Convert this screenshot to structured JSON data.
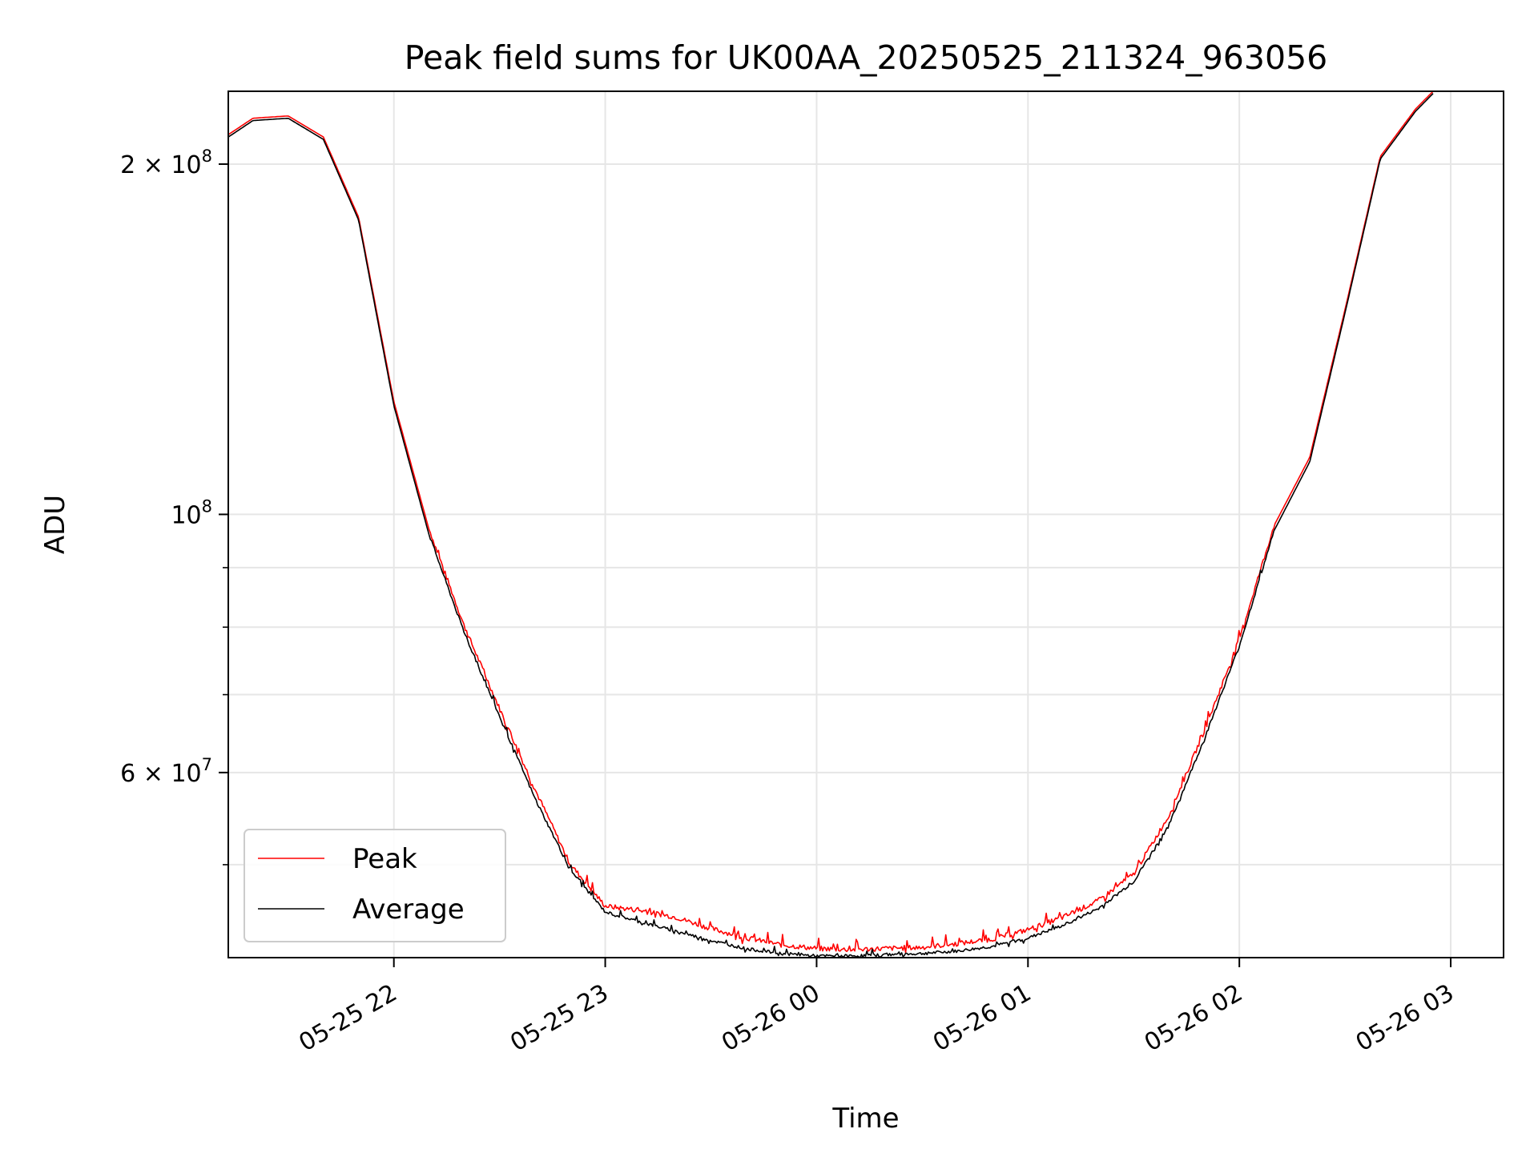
{
  "chart_data": {
    "type": "line",
    "title": "Peak field sums for UK00AA_20250525_211324_963056",
    "xlabel": "Time",
    "ylabel": "ADU",
    "yscale": "log",
    "grid": true,
    "legend_position": "lower-left",
    "xlim": [
      "2025-05-25 21:13",
      "2025-05-26 03:15"
    ],
    "ylim": [
      41600000,
      231000000
    ],
    "x_ticks": [
      {
        "t": "2025-05-25 22:00",
        "label": "05-25 22"
      },
      {
        "t": "2025-05-25 23:00",
        "label": "05-25 23"
      },
      {
        "t": "2025-05-26 00:00",
        "label": "05-26 00"
      },
      {
        "t": "2025-05-26 01:00",
        "label": "05-26 01"
      },
      {
        "t": "2025-05-26 02:00",
        "label": "05-26 02"
      },
      {
        "t": "2025-05-26 03:00",
        "label": "05-26 03"
      }
    ],
    "y_major_ticks": [
      {
        "v": 60000000,
        "mant": "6",
        "exp": "7"
      },
      {
        "v": 100000000,
        "mant": "",
        "exp": "8"
      },
      {
        "v": 200000000,
        "mant": "2",
        "exp": "8"
      }
    ],
    "y_minor_ticks": [
      50000000,
      70000000,
      80000000,
      90000000
    ],
    "x": [
      "2025-05-25 21:13",
      "2025-05-25 21:20",
      "2025-05-25 21:30",
      "2025-05-25 21:40",
      "2025-05-25 21:50",
      "2025-05-25 22:00",
      "2025-05-25 22:10",
      "2025-05-25 22:20",
      "2025-05-25 22:30",
      "2025-05-25 22:40",
      "2025-05-25 22:50",
      "2025-05-25 23:00",
      "2025-05-25 23:10",
      "2025-05-25 23:20",
      "2025-05-25 23:30",
      "2025-05-25 23:40",
      "2025-05-25 23:50",
      "2025-05-26 00:00",
      "2025-05-26 00:10",
      "2025-05-26 00:20",
      "2025-05-26 00:30",
      "2025-05-26 00:40",
      "2025-05-26 00:50",
      "2025-05-26 01:00",
      "2025-05-26 01:10",
      "2025-05-26 01:20",
      "2025-05-26 01:30",
      "2025-05-26 01:40",
      "2025-05-26 01:50",
      "2025-05-26 02:00",
      "2025-05-26 02:10",
      "2025-05-26 02:20",
      "2025-05-26 02:30",
      "2025-05-26 02:40",
      "2025-05-26 02:50",
      "2025-05-26 02:55"
    ],
    "series": [
      {
        "name": "Peak",
        "color": "#ff0000",
        "values": [
          212000000,
          219000000,
          220000000,
          211000000,
          180000000,
          125000000,
          97000000,
          80000000,
          68000000,
          58000000,
          50000000,
          46000000,
          45600000,
          45000000,
          44000000,
          43200000,
          42600000,
          42300000,
          42200000,
          42300000,
          42400000,
          42700000,
          43100000,
          43900000,
          45000000,
          46500000,
          49000000,
          55000000,
          65000000,
          78000000,
          98000000,
          112000000,
          150000000,
          203000000,
          223000000,
          231000000
        ]
      },
      {
        "name": "Average",
        "color": "#000000",
        "values": [
          211000000,
          218000000,
          219000000,
          210000000,
          179000000,
          124000000,
          96000000,
          79000000,
          67000000,
          57000000,
          49500000,
          45500000,
          44600000,
          43800000,
          43000000,
          42300000,
          41900000,
          41700000,
          41700000,
          41800000,
          41900000,
          42100000,
          42500000,
          43200000,
          44300000,
          45800000,
          48300000,
          54000000,
          64000000,
          77000000,
          97000000,
          111000000,
          149000000,
          202000000,
          222000000,
          230000000
        ]
      }
    ]
  }
}
